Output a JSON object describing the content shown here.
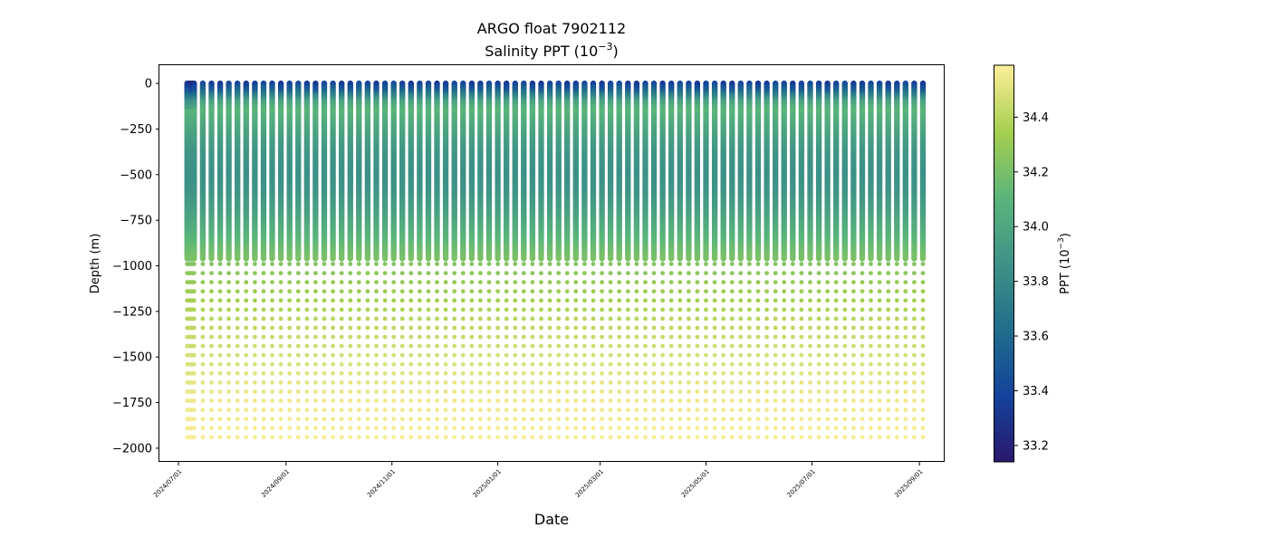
{
  "chart_data": {
    "type": "scatter",
    "title": "ARGO float 7902112",
    "subtitle_prefix": "Salinity PPT (10",
    "subtitle_exp": "−3",
    "subtitle_suffix": ")",
    "xlabel": "Date",
    "ylabel": "Depth (m)",
    "colorbar_label_prefix": "PPT (10",
    "colorbar_label_exp": "−3",
    "colorbar_label_suffix": ")",
    "colormap": "haline",
    "colormap_stops": [
      "#2a186c",
      "#14439c",
      "#206e8b",
      "#3d9387",
      "#5bb57a",
      "#a6cf4f",
      "#fdef9a"
    ],
    "clim": [
      33.14,
      34.59
    ],
    "xlim": [
      "2024-06-20",
      "2025-09-15"
    ],
    "ylim": [
      -2070,
      100
    ],
    "grid": false,
    "xtick_labels": [
      "2024/07/01",
      "2024/09/01",
      "2024/11/01",
      "2025/01/01",
      "2025/03/01",
      "2025/05/01",
      "2025/07/01",
      "2025/09/01"
    ],
    "xtick_dates": [
      "2024-07-01",
      "2024-09-01",
      "2024-11-01",
      "2025-01-01",
      "2025-03-01",
      "2025-05-01",
      "2025-07-01",
      "2025-09-01"
    ],
    "ytick_values": [
      0,
      -250,
      -500,
      -750,
      -1000,
      -1250,
      -1500,
      -1750,
      -2000
    ],
    "ytick_labels": [
      "0",
      "−250",
      "−500",
      "−750",
      "−1000",
      "−1250",
      "−1500",
      "−1750",
      "−2000"
    ],
    "cbar_tick_values": [
      33.2,
      33.4,
      33.6,
      33.8,
      34.0,
      34.2,
      34.4
    ],
    "cbar_tick_labels": [
      "33.2",
      "33.4",
      "33.6",
      "33.8",
      "34.0",
      "34.2",
      "34.4"
    ],
    "profile_dates": [
      "2024-07-06",
      "2024-07-07",
      "2024-07-08",
      "2024-07-09",
      "2024-07-10",
      "2024-07-15",
      "2024-07-20",
      "2024-07-25",
      "2024-07-30",
      "2024-08-04",
      "2024-08-09",
      "2024-08-14",
      "2024-08-19",
      "2024-08-24",
      "2024-08-29",
      "2024-09-03",
      "2024-09-08",
      "2024-09-13",
      "2024-09-18",
      "2024-09-23",
      "2024-09-28",
      "2024-10-03",
      "2024-10-08",
      "2024-10-13",
      "2024-10-18",
      "2024-10-23",
      "2024-10-28",
      "2024-11-02",
      "2024-11-07",
      "2024-11-12",
      "2024-11-17",
      "2024-11-22",
      "2024-11-27",
      "2024-12-02",
      "2024-12-07",
      "2024-12-12",
      "2024-12-17",
      "2024-12-22",
      "2024-12-27",
      "2025-01-01",
      "2025-01-06",
      "2025-01-11",
      "2025-01-16",
      "2025-01-21",
      "2025-01-26",
      "2025-01-31",
      "2025-02-05",
      "2025-02-10",
      "2025-02-15",
      "2025-02-20",
      "2025-02-25",
      "2025-03-02",
      "2025-03-07",
      "2025-03-12",
      "2025-03-17",
      "2025-03-22",
      "2025-03-27",
      "2025-04-01",
      "2025-04-06",
      "2025-04-11",
      "2025-04-16",
      "2025-04-21",
      "2025-04-26",
      "2025-05-01",
      "2025-05-06",
      "2025-05-11",
      "2025-05-16",
      "2025-05-21",
      "2025-05-26",
      "2025-05-31",
      "2025-06-05",
      "2025-06-10",
      "2025-06-15",
      "2025-06-20",
      "2025-06-25",
      "2025-06-30",
      "2025-07-05",
      "2025-07-10",
      "2025-07-15",
      "2025-07-20",
      "2025-07-25",
      "2025-07-30",
      "2025-08-04",
      "2025-08-09",
      "2025-08-14",
      "2025-08-19",
      "2025-08-24",
      "2025-08-29",
      "2025-09-03"
    ],
    "profile": {
      "depth": [
        0,
        -50,
        -100,
        -150,
        -200,
        -300,
        -400,
        -500,
        -600,
        -700,
        -800,
        -900,
        -1000,
        -1250,
        -1500,
        -1750,
        -2000
      ],
      "salinity": [
        33.35,
        33.6,
        33.95,
        34.1,
        34.05,
        33.95,
        33.88,
        33.85,
        33.88,
        33.95,
        34.05,
        34.15,
        34.25,
        34.38,
        34.48,
        34.55,
        34.58
      ]
    }
  }
}
